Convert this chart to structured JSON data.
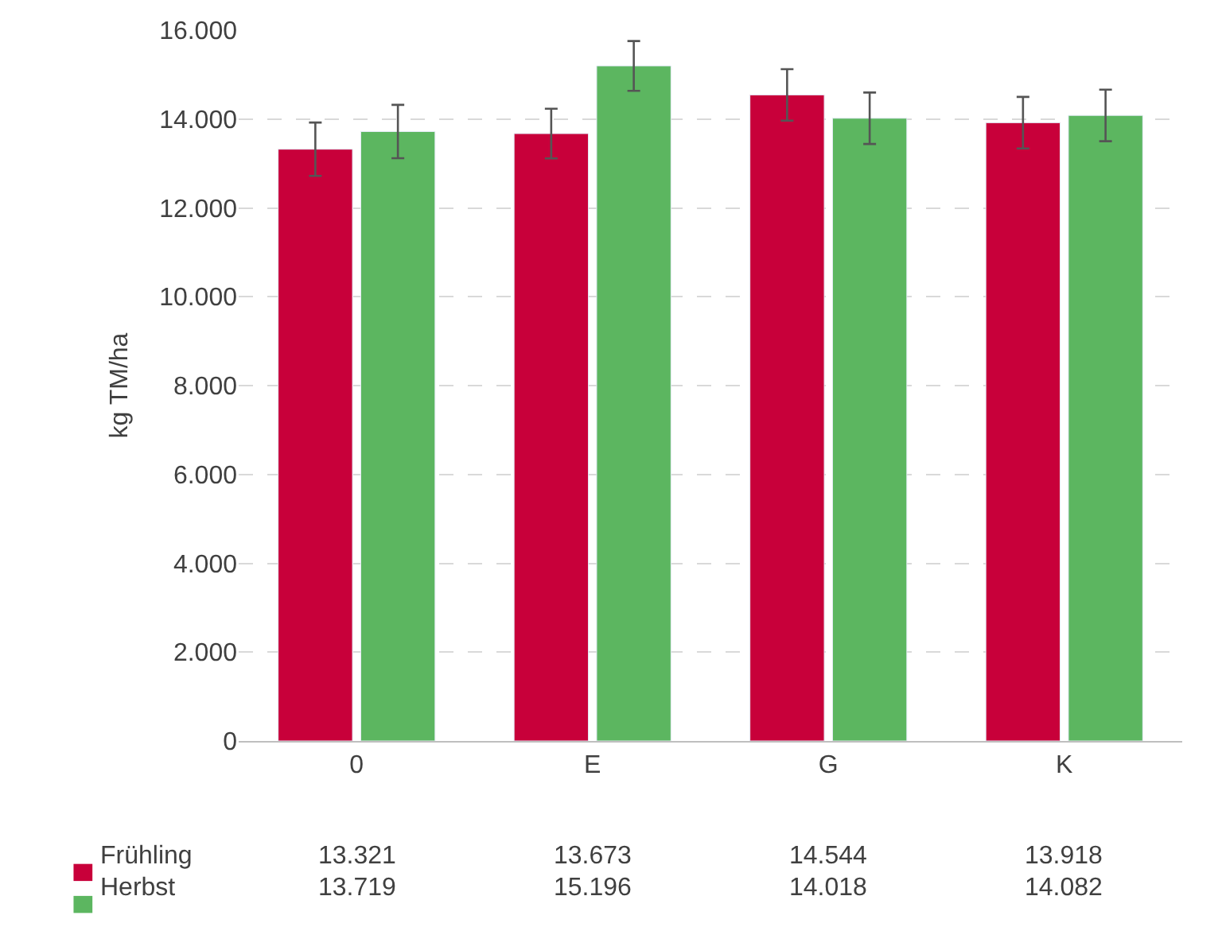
{
  "chart_data": {
    "type": "bar",
    "ylabel": "kg TM/ha",
    "categories": [
      "0",
      "E",
      "G",
      "K"
    ],
    "series": [
      {
        "name": "Frühling",
        "color": "#c8003a",
        "values": [
          13321,
          13673,
          14544,
          13918
        ],
        "errors": [
          600,
          560,
          580,
          580
        ]
      },
      {
        "name": "Herbst",
        "color": "#5cb660",
        "values": [
          13719,
          15196,
          14018,
          14082
        ],
        "errors": [
          600,
          560,
          580,
          580
        ]
      }
    ],
    "value_labels": [
      [
        "13.321",
        "13.673",
        "14.544",
        "13.918"
      ],
      [
        "13.719",
        "15.196",
        "14.018",
        "14.082"
      ]
    ],
    "ylim": [
      0,
      16000
    ],
    "yticks": [
      {
        "value": 0,
        "label": "0"
      },
      {
        "value": 2000,
        "label": "2.000"
      },
      {
        "value": 4000,
        "label": "4.000"
      },
      {
        "value": 6000,
        "label": "6.000"
      },
      {
        "value": 8000,
        "label": "8.000"
      },
      {
        "value": 10000,
        "label": "10.000"
      },
      {
        "value": 12000,
        "label": "12.000"
      },
      {
        "value": 14000,
        "label": "14.000"
      },
      {
        "value": 16000,
        "label": "16.000"
      }
    ],
    "grid": "y",
    "legend": "bottom left"
  }
}
